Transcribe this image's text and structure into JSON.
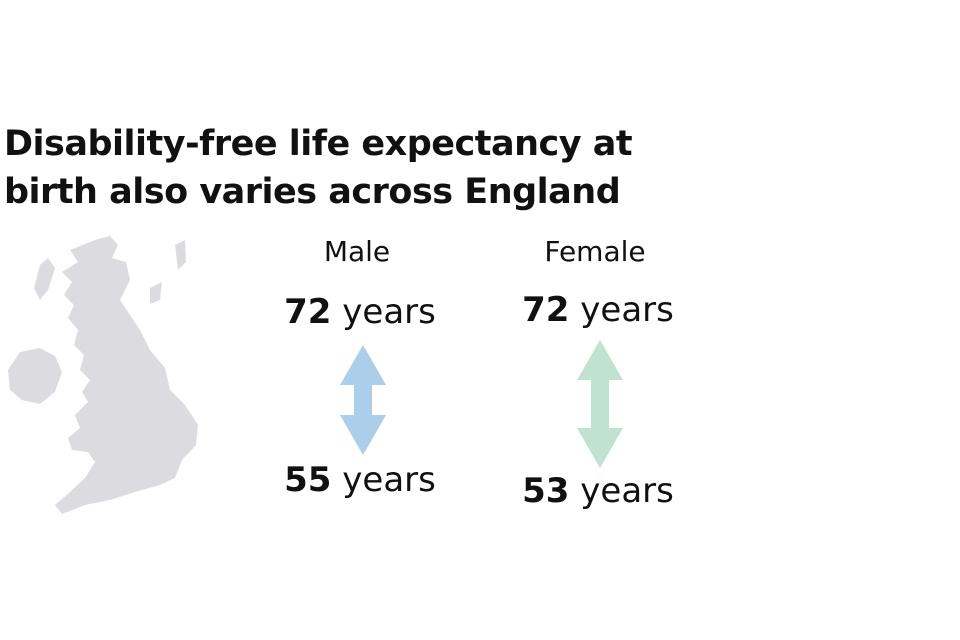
{
  "title": "Disability-free life expectancy at birth also varies across England",
  "unit": "years",
  "groups": [
    {
      "label": "Male",
      "high": 72,
      "low": 55,
      "color": "#abcfeb"
    },
    {
      "label": "Female",
      "high": 72,
      "low": 53,
      "color": "#bfe3d0"
    }
  ]
}
